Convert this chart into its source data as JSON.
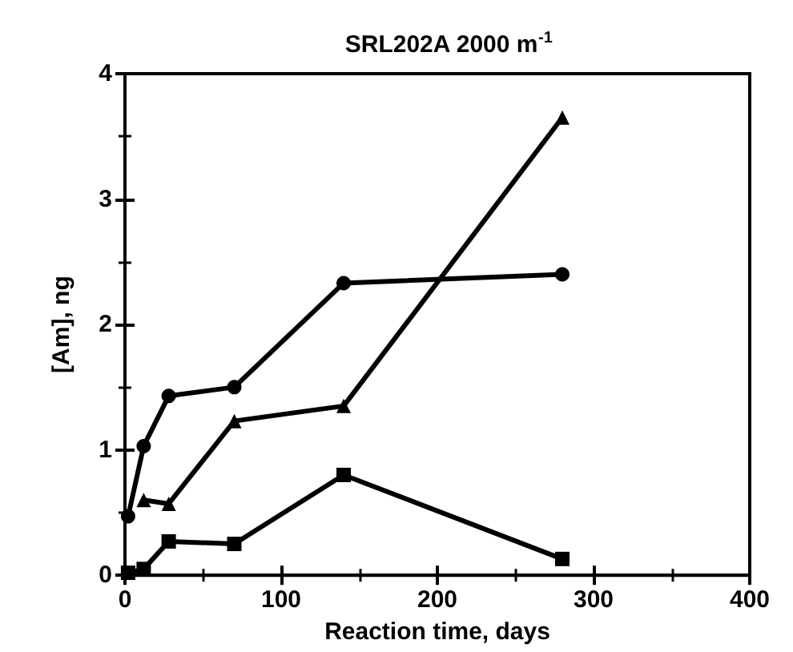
{
  "chart_data": {
    "type": "line",
    "title": "SRL202A 2000 m$^{-1}$",
    "xlabel": "Reaction time, days",
    "ylabel": "[Am], ng",
    "xlim": [
      0,
      400
    ],
    "xticks": [
      0,
      100,
      200,
      300,
      400
    ],
    "ylim": [
      0,
      4
    ],
    "yticks": [
      0,
      1,
      2,
      3,
      4
    ],
    "grid": false,
    "series": [
      {
        "color": "#000000",
        "marker": "circle",
        "x": [
          2,
          12,
          28,
          70,
          140,
          280
        ],
        "values": [
          0.47,
          1.03,
          1.43,
          1.5,
          2.33,
          2.4
        ]
      },
      {
        "color": "#000000",
        "marker": "triangle",
        "x": [
          12,
          28,
          70,
          140,
          280
        ],
        "values": [
          0.6,
          0.57,
          1.23,
          1.35,
          3.65
        ]
      },
      {
        "color": "#000000",
        "marker": "square",
        "x": [
          2,
          12,
          28,
          70,
          140,
          280
        ],
        "values": [
          0.02,
          0.05,
          0.27,
          0.25,
          0.8,
          0.13
        ]
      }
    ]
  }
}
